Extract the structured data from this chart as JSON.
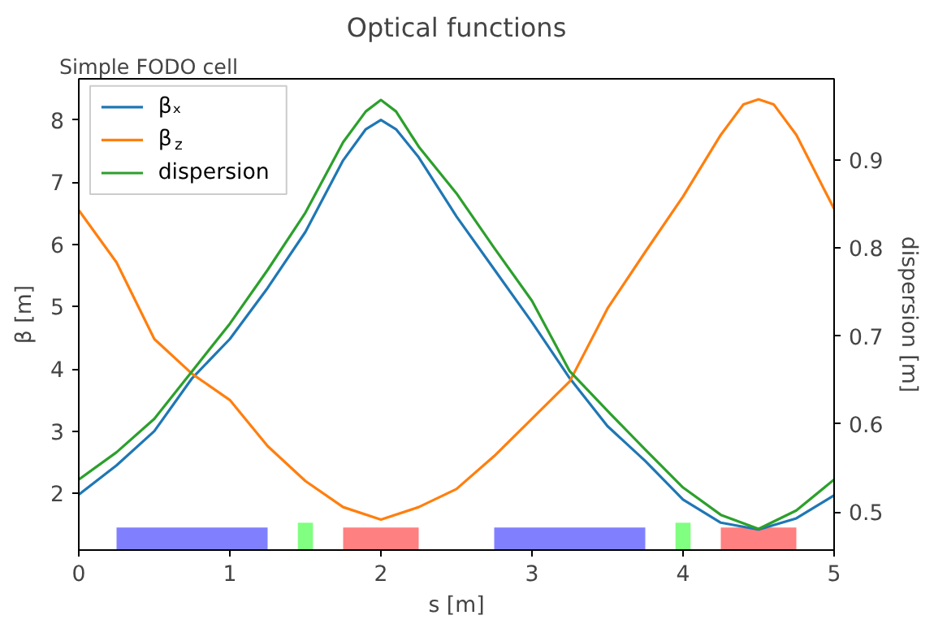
{
  "chart_data": {
    "type": "line",
    "title": "Optical functions",
    "subtitle": "Simple FODO cell",
    "xlabel": "s [m]",
    "ylabel": "β [m]",
    "y2label": "dispersion [m]",
    "xlim": [
      0,
      5
    ],
    "xticks": [
      0,
      1,
      2,
      3,
      4,
      5
    ],
    "ylim": [
      1.09,
      8.66
    ],
    "yticks": [
      2,
      3,
      4,
      5,
      6,
      7,
      8
    ],
    "y2lim": [
      0.457,
      0.992
    ],
    "y2ticks": [
      0.5,
      0.6,
      0.7,
      0.8,
      0.9
    ],
    "legend": "top left",
    "grid": false,
    "bands": [
      {
        "axis": "x",
        "from": 0.25,
        "to": 1.25,
        "color": "#8080ff"
      },
      {
        "axis": "x",
        "from": 1.45,
        "to": 1.55,
        "color": "#80ff80"
      },
      {
        "axis": "x",
        "from": 1.75,
        "to": 2.25,
        "color": "#ff8080"
      },
      {
        "axis": "x",
        "from": 2.75,
        "to": 3.75,
        "color": "#8080ff"
      },
      {
        "axis": "x",
        "from": 3.95,
        "to": 4.05,
        "color": "#80ff80"
      },
      {
        "axis": "x",
        "from": 4.25,
        "to": 4.75,
        "color": "#ff8080"
      }
    ],
    "series": [
      {
        "name": "βₓ",
        "color": "#1f77b4",
        "x": [
          0,
          0.25,
          0.5,
          0.75,
          1.0,
          1.25,
          1.5,
          1.75,
          1.9,
          2.0,
          2.1,
          2.25,
          2.5,
          2.75,
          3.0,
          3.25,
          3.5,
          3.75,
          4.0,
          4.25,
          4.5,
          4.75,
          5.0
        ],
        "values": [
          1.98,
          2.45,
          3.0,
          3.85,
          4.48,
          5.3,
          6.2,
          7.35,
          7.85,
          8.0,
          7.85,
          7.4,
          6.45,
          5.6,
          4.75,
          3.85,
          3.08,
          2.52,
          1.9,
          1.53,
          1.42,
          1.6,
          1.97
        ]
      },
      {
        "name": "β$_{z}$",
        "color": "#ff7f0e",
        "x": [
          0,
          0.25,
          0.5,
          0.75,
          1.0,
          1.25,
          1.5,
          1.75,
          2.0,
          2.25,
          2.5,
          2.75,
          3.0,
          3.25,
          3.5,
          3.75,
          4.0,
          4.25,
          4.4,
          4.5,
          4.6,
          4.75,
          5.0
        ],
        "values": [
          6.55,
          5.71,
          4.48,
          3.92,
          3.5,
          2.76,
          2.2,
          1.78,
          1.58,
          1.78,
          2.07,
          2.6,
          3.2,
          3.8,
          4.97,
          5.88,
          6.77,
          7.76,
          8.25,
          8.33,
          8.25,
          7.76,
          6.57
        ]
      },
      {
        "name": "dispersion",
        "color": "#2ca02c",
        "axis": "y2",
        "x": [
          0,
          0.25,
          0.5,
          0.75,
          1.0,
          1.25,
          1.5,
          1.75,
          1.9,
          2.0,
          2.1,
          2.25,
          2.5,
          2.75,
          3.0,
          3.25,
          3.5,
          3.75,
          4.0,
          4.25,
          4.5,
          4.75,
          5.0
        ],
        "values": [
          0.537,
          0.568,
          0.606,
          0.66,
          0.714,
          0.775,
          0.84,
          0.92,
          0.955,
          0.968,
          0.955,
          0.915,
          0.862,
          0.8,
          0.74,
          0.66,
          0.615,
          0.571,
          0.528,
          0.497,
          0.481,
          0.502,
          0.537
        ]
      }
    ]
  }
}
